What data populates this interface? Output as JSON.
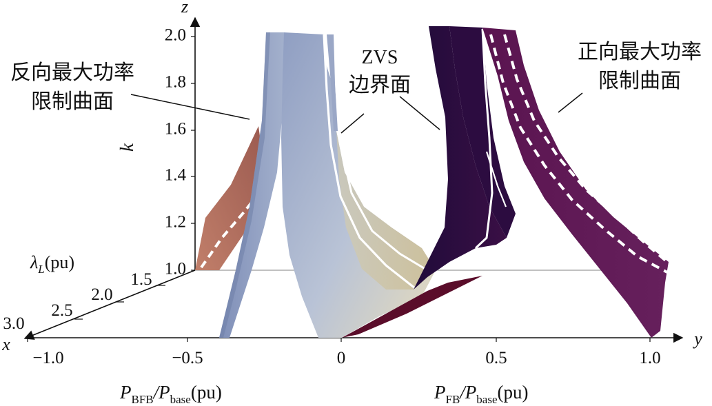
{
  "chart_data": {
    "type": "surface3d",
    "title": "",
    "axes": {
      "z": {
        "label": "k",
        "letter": "z",
        "ticks": [
          "1.0",
          "1.2",
          "1.4",
          "1.6",
          "1.8",
          "2.0"
        ],
        "range": [
          1.0,
          2.0
        ]
      },
      "y": {
        "letter": "y",
        "ticks": [
          "−1.0",
          "−0.5",
          "0",
          "0.5",
          "1.0"
        ],
        "range": [
          -1.0,
          1.0
        ],
        "label_left": {
          "main": "P",
          "sub1": "BFB",
          "mid": "/P",
          "sub2": "base",
          "unit": "(pu)"
        },
        "label_right": {
          "main": "P",
          "sub1": "FB",
          "mid": "/P",
          "sub2": "base",
          "unit": "(pu)"
        }
      },
      "x": {
        "letter": "x",
        "label": {
          "main": "λ",
          "sub": "L",
          "unit": "(pu)"
        },
        "ticks": [
          "1.5",
          "2.0",
          "2.5",
          "3.0"
        ]
      }
    },
    "annotations": {
      "reverse_limit": [
        "反向最大功率",
        "限制曲面"
      ],
      "zvs_boundary": [
        "ZVS",
        "边界面"
      ],
      "forward_limit": [
        "正向最大功率",
        "限制曲面"
      ]
    },
    "series": [
      {
        "name": "反向最大功率限制曲面",
        "color": "#b06a5e"
      },
      {
        "name": "ZVS边界面",
        "color": "#c2cbdc"
      },
      {
        "name": "正向最大功率限制曲面",
        "color": "#5e1a56"
      }
    ]
  }
}
